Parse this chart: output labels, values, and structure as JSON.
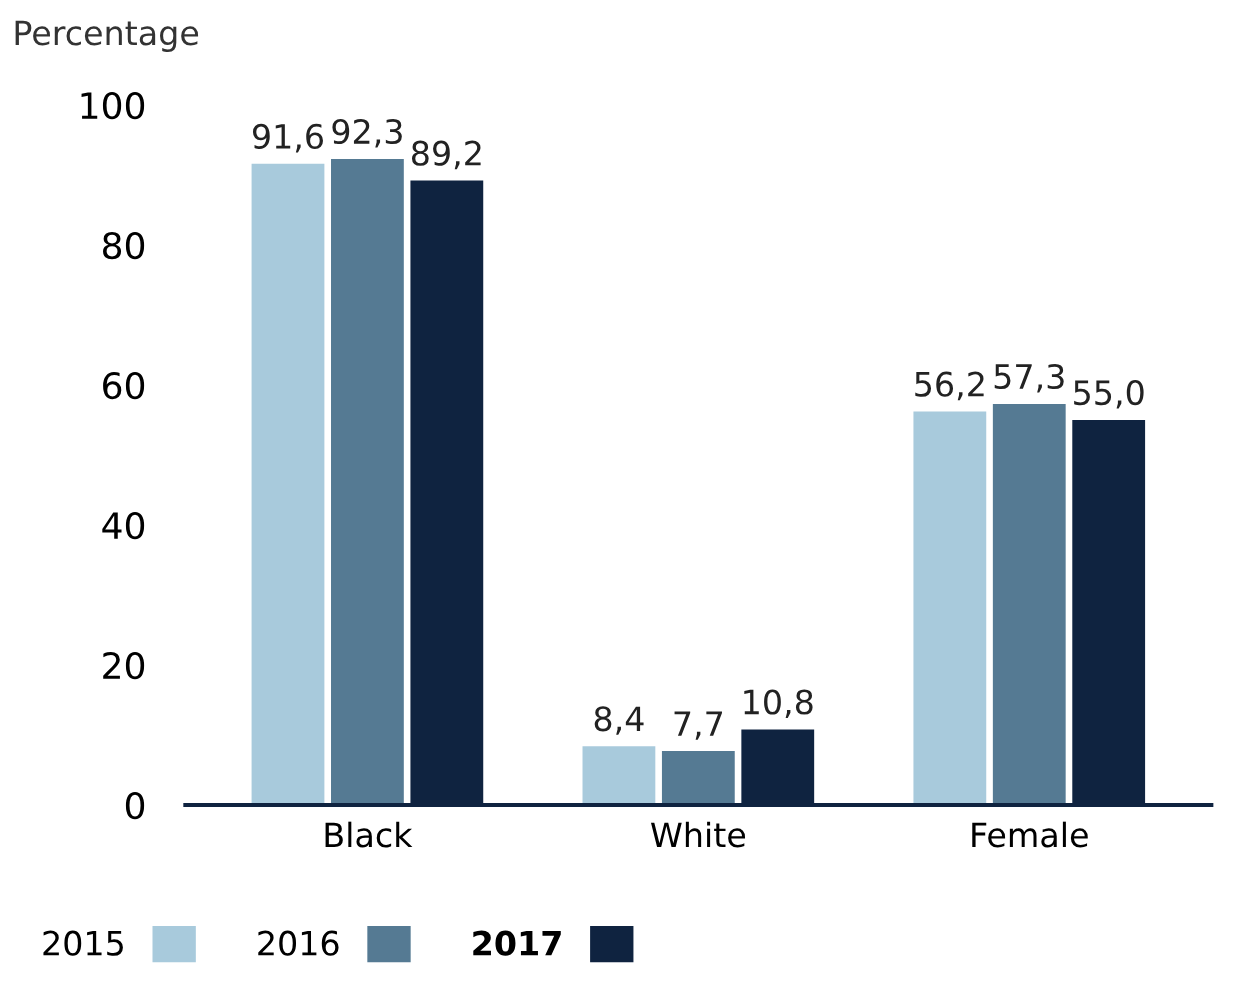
{
  "chart_data": {
    "type": "bar",
    "ylabel": "Percentage",
    "categories": [
      "Black",
      "White",
      "Female"
    ],
    "series": [
      {
        "name": "2015",
        "color": "#a8cadc",
        "values": [
          91.6,
          8.4,
          56.2
        ],
        "value_labels": [
          "91,6",
          "8,4",
          "56,2"
        ]
      },
      {
        "name": "2016",
        "color": "#557a93",
        "values": [
          92.3,
          7.7,
          57.3
        ],
        "value_labels": [
          "92,3",
          "7,7",
          "57,3"
        ]
      },
      {
        "name": "2017",
        "color": "#0f2340",
        "values": [
          89.2,
          10.8,
          55.0
        ],
        "value_labels": [
          "89,2",
          "10,8",
          "55,0"
        ]
      }
    ],
    "ylim": [
      0,
      100
    ],
    "yticks": [
      0,
      20,
      40,
      60,
      80,
      100
    ],
    "grid": false,
    "legend": "bottom left"
  }
}
